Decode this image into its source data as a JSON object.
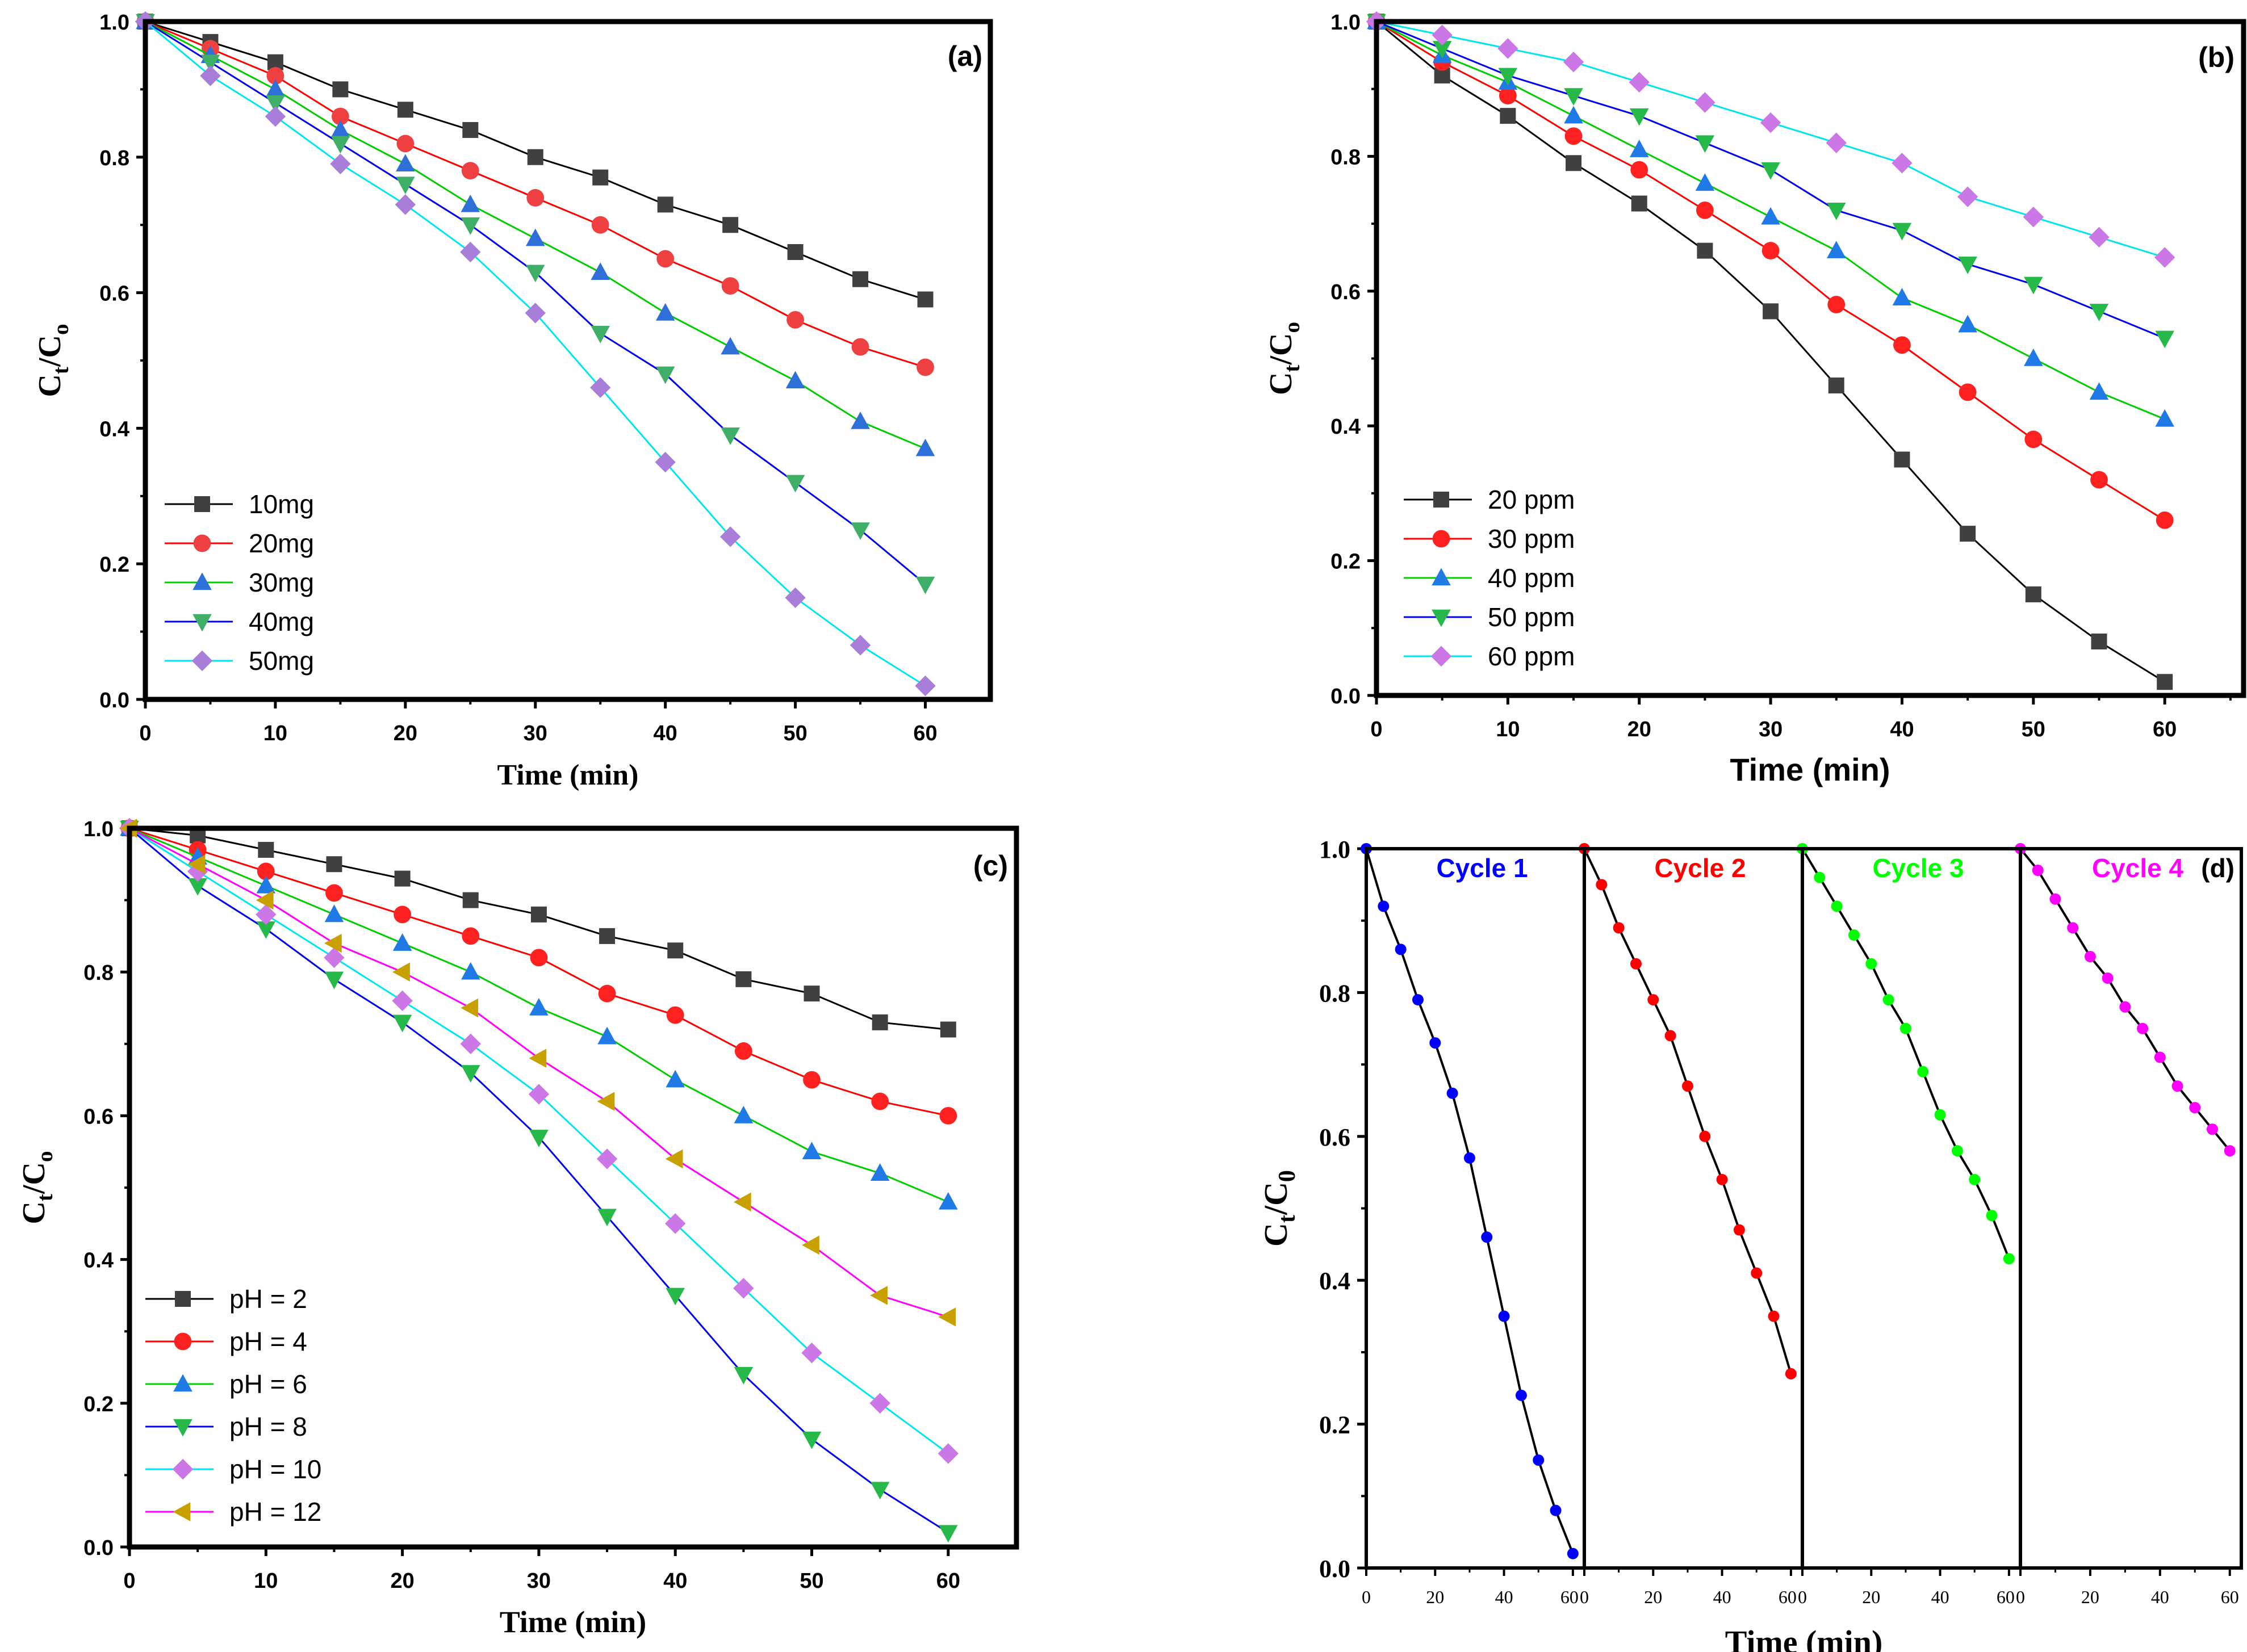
{
  "chart_data": [
    {
      "id": "a",
      "type": "line",
      "panel_label": "(a)",
      "xlabel": "Time (min)",
      "ylabel_main": "C",
      "ylabel_sub1": "t",
      "ylabel_mid": "/C",
      "ylabel_sub2": "o",
      "xlim": [
        0,
        65
      ],
      "ylim": [
        0,
        1.0
      ],
      "xticks": [
        0,
        10,
        20,
        30,
        40,
        50,
        60
      ],
      "yticks": [
        0.0,
        0.2,
        0.4,
        0.6,
        0.8,
        1.0
      ],
      "ytick_labels": [
        "0.0",
        "0.2",
        "0.4",
        "0.6",
        "0.8",
        "1.0"
      ],
      "legend_position": "bottom-left",
      "x": [
        0,
        5,
        10,
        15,
        20,
        25,
        30,
        35,
        40,
        45,
        50,
        55,
        60
      ],
      "series": [
        {
          "name": "10mg",
          "color": "#000000",
          "marker_color": "#404040",
          "marker": "square",
          "values": [
            1.0,
            0.97,
            0.94,
            0.9,
            0.87,
            0.84,
            0.8,
            0.77,
            0.73,
            0.7,
            0.66,
            0.62,
            0.59
          ]
        },
        {
          "name": "20mg",
          "color": "#ff0000",
          "marker_color": "#ee4040",
          "marker": "circle",
          "values": [
            1.0,
            0.96,
            0.92,
            0.86,
            0.82,
            0.78,
            0.74,
            0.7,
            0.65,
            0.61,
            0.56,
            0.52,
            0.49
          ]
        },
        {
          "name": "30mg",
          "color": "#00cc00",
          "marker_color": "#2f70d8",
          "marker": "triangle-up",
          "values": [
            1.0,
            0.95,
            0.9,
            0.84,
            0.79,
            0.73,
            0.68,
            0.63,
            0.57,
            0.52,
            0.47,
            0.41,
            0.37
          ]
        },
        {
          "name": "40mg",
          "color": "#0000ee",
          "marker_color": "#3fae66",
          "marker": "triangle-down",
          "values": [
            1.0,
            0.94,
            0.88,
            0.82,
            0.76,
            0.7,
            0.63,
            0.54,
            0.48,
            0.39,
            0.32,
            0.25,
            0.17
          ]
        },
        {
          "name": "50mg",
          "color": "#00e5ee",
          "marker_color": "#a97ed8",
          "marker": "diamond",
          "values": [
            1.0,
            0.92,
            0.86,
            0.79,
            0.73,
            0.66,
            0.57,
            0.46,
            0.35,
            0.24,
            0.15,
            0.08,
            0.02
          ]
        }
      ]
    },
    {
      "id": "b",
      "type": "line",
      "panel_label": "(b)",
      "xlabel": "Time (min)",
      "ylabel_main": "C",
      "ylabel_sub1": "t",
      "ylabel_mid": "/C",
      "ylabel_sub2": "o",
      "xlim": [
        0,
        66
      ],
      "ylim": [
        0,
        1.0
      ],
      "xticks": [
        0,
        10,
        20,
        30,
        40,
        50,
        60
      ],
      "yticks": [
        0.0,
        0.2,
        0.4,
        0.6,
        0.8,
        1.0
      ],
      "ytick_labels": [
        "0.0",
        "0.2",
        "0.4",
        "0.6",
        "0.8",
        "1.0"
      ],
      "legend_position": "bottom-left",
      "x": [
        0,
        5,
        10,
        15,
        20,
        25,
        30,
        35,
        40,
        45,
        50,
        55,
        60
      ],
      "series": [
        {
          "name": "20 ppm",
          "color": "#000000",
          "marker_color": "#404040",
          "marker": "square",
          "values": [
            1.0,
            0.92,
            0.86,
            0.79,
            0.73,
            0.66,
            0.57,
            0.46,
            0.35,
            0.24,
            0.15,
            0.08,
            0.02
          ]
        },
        {
          "name": "30 ppm",
          "color": "#ff0000",
          "marker_color": "#ff2020",
          "marker": "circle",
          "values": [
            1.0,
            0.94,
            0.89,
            0.83,
            0.78,
            0.72,
            0.66,
            0.58,
            0.52,
            0.45,
            0.38,
            0.32,
            0.26
          ]
        },
        {
          "name": "40 ppm",
          "color": "#00cc00",
          "marker_color": "#1f7ae6",
          "marker": "triangle-up",
          "values": [
            1.0,
            0.95,
            0.91,
            0.86,
            0.81,
            0.76,
            0.71,
            0.66,
            0.59,
            0.55,
            0.5,
            0.45,
            0.41
          ]
        },
        {
          "name": "50 ppm",
          "color": "#0000ee",
          "marker_color": "#27b84a",
          "marker": "triangle-down",
          "values": [
            1.0,
            0.96,
            0.92,
            0.89,
            0.86,
            0.82,
            0.78,
            0.72,
            0.69,
            0.64,
            0.61,
            0.57,
            0.53
          ]
        },
        {
          "name": "60 ppm",
          "color": "#00e5ee",
          "marker_color": "#cc77e6",
          "marker": "diamond",
          "values": [
            1.0,
            0.98,
            0.96,
            0.94,
            0.91,
            0.88,
            0.85,
            0.82,
            0.79,
            0.74,
            0.71,
            0.68,
            0.65
          ]
        }
      ]
    },
    {
      "id": "c",
      "type": "line",
      "panel_label": "(c)",
      "xlabel": "Time (min)",
      "ylabel_main": "C",
      "ylabel_sub1": "t",
      "ylabel_mid": "/C",
      "ylabel_sub2": "o",
      "xlim": [
        0,
        65
      ],
      "ylim": [
        0,
        1.0
      ],
      "xticks": [
        0,
        10,
        20,
        30,
        40,
        50,
        60
      ],
      "yticks": [
        0.0,
        0.2,
        0.4,
        0.6,
        0.8,
        1.0
      ],
      "ytick_labels": [
        "0.0",
        "0.2",
        "0.4",
        "0.6",
        "0.8",
        "1.0"
      ],
      "legend_position": "bottom-left",
      "x": [
        0,
        5,
        10,
        15,
        20,
        25,
        30,
        35,
        40,
        45,
        50,
        55,
        60
      ],
      "series": [
        {
          "name": "pH = 2",
          "color": "#000000",
          "marker_color": "#404040",
          "marker": "square",
          "values": [
            1.0,
            0.99,
            0.97,
            0.95,
            0.93,
            0.9,
            0.88,
            0.85,
            0.83,
            0.79,
            0.77,
            0.73,
            0.72
          ]
        },
        {
          "name": "pH = 4",
          "color": "#ff0000",
          "marker_color": "#ff2020",
          "marker": "circle",
          "values": [
            1.0,
            0.97,
            0.94,
            0.91,
            0.88,
            0.85,
            0.82,
            0.77,
            0.74,
            0.69,
            0.65,
            0.62,
            0.6
          ]
        },
        {
          "name": "pH = 6",
          "color": "#00cc00",
          "marker_color": "#1f7ae6",
          "marker": "triangle-up",
          "values": [
            1.0,
            0.96,
            0.92,
            0.88,
            0.84,
            0.8,
            0.75,
            0.71,
            0.65,
            0.6,
            0.55,
            0.52,
            0.48
          ]
        },
        {
          "name": "pH = 8",
          "color": "#0000ee",
          "marker_color": "#27b84a",
          "marker": "triangle-down",
          "values": [
            1.0,
            0.92,
            0.86,
            0.79,
            0.73,
            0.66,
            0.57,
            0.46,
            0.35,
            0.24,
            0.15,
            0.08,
            0.02
          ]
        },
        {
          "name": "pH = 10",
          "color": "#00e5ee",
          "marker_color": "#cc77e6",
          "marker": "diamond",
          "values": [
            1.0,
            0.94,
            0.88,
            0.82,
            0.76,
            0.7,
            0.63,
            0.54,
            0.45,
            0.36,
            0.27,
            0.2,
            0.13
          ]
        },
        {
          "name": "pH = 12",
          "color": "#ff00ff",
          "marker_color": "#c8a000",
          "marker": "triangle-left",
          "values": [
            1.0,
            0.95,
            0.9,
            0.84,
            0.8,
            0.75,
            0.68,
            0.62,
            0.54,
            0.48,
            0.42,
            0.35,
            0.32
          ]
        }
      ]
    },
    {
      "id": "d",
      "type": "line",
      "panel_label": "(d)",
      "xlabel": "Time (min)",
      "ylabel_main": "C",
      "ylabel_sub1": "t",
      "ylabel_mid": "/C",
      "ylabel_sub2": "0",
      "ylim": [
        0,
        1.0
      ],
      "yticks": [
        0.0,
        0.2,
        0.4,
        0.6,
        0.8,
        1.0
      ],
      "ytick_labels": [
        "0.0",
        "0.2",
        "0.4",
        "0.6",
        "0.8",
        "1.0"
      ],
      "segment_xlim": [
        0,
        62
      ],
      "segment_xticks": [
        0,
        20,
        40,
        60
      ],
      "segment_minor_xticks": [
        10,
        30,
        50
      ],
      "segment_xtick_labels": [
        "0",
        "20",
        "40",
        "60"
      ],
      "x": [
        0,
        5,
        10,
        15,
        20,
        25,
        30,
        35,
        40,
        45,
        50,
        55,
        60
      ],
      "cycles": [
        {
          "name": "Cycle 1",
          "color": "#0000ff",
          "values": [
            1.0,
            0.92,
            0.86,
            0.79,
            0.73,
            0.66,
            0.57,
            0.46,
            0.35,
            0.24,
            0.15,
            0.08,
            0.02
          ]
        },
        {
          "name": "Cycle 2",
          "color": "#ff0000",
          "values": [
            1.0,
            0.95,
            0.89,
            0.84,
            0.79,
            0.74,
            0.67,
            0.6,
            0.54,
            0.47,
            0.41,
            0.35,
            0.27
          ]
        },
        {
          "name": "Cycle 3",
          "color": "#00ff00",
          "values": [
            1.0,
            0.96,
            0.92,
            0.88,
            0.84,
            0.79,
            0.75,
            0.69,
            0.63,
            0.58,
            0.54,
            0.49,
            0.43
          ]
        },
        {
          "name": "Cycle 4",
          "color": "#ff00ff",
          "values": [
            1.0,
            0.97,
            0.93,
            0.89,
            0.85,
            0.82,
            0.78,
            0.75,
            0.71,
            0.67,
            0.64,
            0.61,
            0.58
          ]
        }
      ]
    }
  ]
}
